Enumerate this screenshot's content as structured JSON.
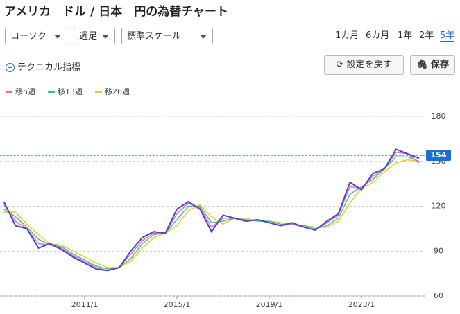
{
  "header": {
    "title": "アメリカ　ドル / 日本　円の為替チャート"
  },
  "controls": {
    "chart_style": "ローソク",
    "period": "週足",
    "scale": "標準スケール",
    "ranges": [
      "1カ月",
      "6カ月",
      "1年",
      "2年",
      "5年"
    ],
    "active_range": 4,
    "technical": "テクニカル指標",
    "reset": "設定を戻す",
    "save": "保存"
  },
  "chart_data": {
    "type": "line",
    "categories": [
      null,
      null,
      null,
      null,
      null,
      null,
      null,
      "2011/1",
      null,
      null,
      null,
      null,
      null,
      null,
      null,
      "2015/1",
      null,
      null,
      null,
      null,
      null,
      null,
      null,
      "2019/1",
      null,
      null,
      null,
      null,
      null,
      null,
      null,
      "2023/1",
      null,
      null,
      null,
      null,
      null
    ],
    "series": [
      {
        "color": "#5b3fc4",
        "values": [
          123,
          107,
          105,
          92,
          95,
          91,
          86,
          82,
          78,
          77,
          79,
          90,
          99,
          103,
          102,
          118,
          123,
          118,
          103,
          114,
          112,
          110,
          111,
          109,
          107,
          109,
          106,
          104,
          110,
          115,
          136,
          131,
          142,
          145,
          158,
          155,
          152
        ]
      },
      {
        "name": "移5週",
        "color": "#e860d8",
        "values": [
          121,
          110,
          105,
          95,
          94,
          92,
          87,
          83,
          79,
          77,
          79,
          88,
          97,
          102,
          102,
          115,
          122,
          119,
          106,
          112,
          112,
          110,
          111,
          109,
          107,
          108,
          106,
          104,
          109,
          114,
          133,
          132,
          140,
          145,
          156,
          155,
          149
        ]
      },
      {
        "name": "移13週",
        "color": "#27c98e",
        "values": [
          118,
          113,
          106,
          98,
          94,
          93,
          88,
          84,
          80,
          78,
          79,
          85,
          95,
          101,
          102,
          111,
          120,
          120,
          109,
          110,
          112,
          111,
          110,
          110,
          108,
          108,
          107,
          105,
          107,
          112,
          128,
          133,
          138,
          145,
          153,
          153,
          150
        ]
      },
      {
        "name": "移26週",
        "color": "#f5c518",
        "values": [
          116,
          116,
          108,
          101,
          95,
          94,
          90,
          86,
          82,
          79,
          79,
          83,
          92,
          99,
          102,
          107,
          117,
          121,
          113,
          108,
          112,
          112,
          110,
          110,
          109,
          108,
          107,
          106,
          106,
          110,
          122,
          132,
          136,
          143,
          149,
          151,
          150
        ]
      }
    ],
    "current_price": 154,
    "ylim": [
      60,
      180
    ],
    "yticks": [
      60,
      90,
      120,
      150,
      180
    ],
    "grid": true
  }
}
